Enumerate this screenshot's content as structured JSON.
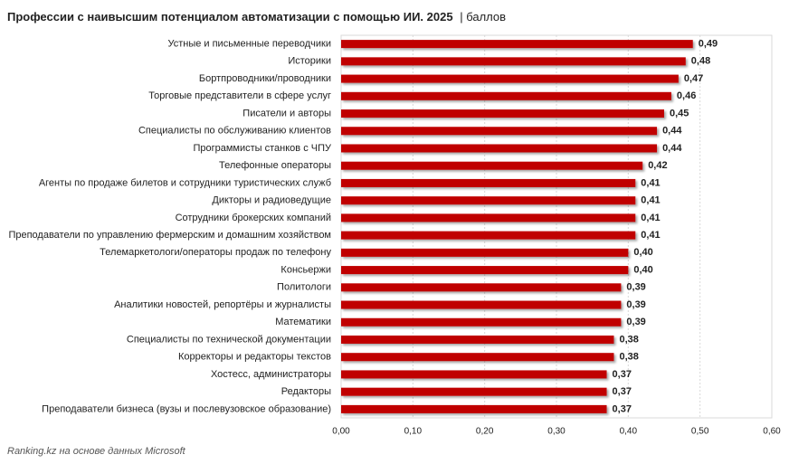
{
  "chart_data": {
    "type": "hbar",
    "title": "Профессии с наивысшим потенциалом автоматизации с помощью ИИ. 2025",
    "subtitle": "| баллов",
    "source": "Ranking.kz на основе данных Microsoft",
    "color": "#c00000",
    "grid": true,
    "categories": [
      "Устные и письменные переводчики",
      "Историки",
      "Бортпроводники/проводники",
      "Торговые представители в сфере услуг",
      "Писатели и авторы",
      "Специалисты по обслуживанию клиентов",
      "Программисты станков с ЧПУ",
      "Телефонные операторы",
      "Агенты по продаже билетов и сотрудники туристических служб",
      "Дикторы и радиоведущие",
      "Сотрудники брокерских компаний",
      "Преподаватели по управлению фермерским и домашним хозяйством",
      "Телемаркетологи/операторы продаж по телефону",
      "Консьержи",
      "Политологи",
      "Аналитики новостей, репортёры и журналисты",
      "Математики",
      "Специалисты по технической документации",
      "Корректоры и редакторы текстов",
      "Хостесс, администраторы",
      "Редакторы",
      "Преподаватели бизнеса (вузы и послевузовское образование)"
    ],
    "values": [
      0.49,
      0.48,
      0.47,
      0.46,
      0.45,
      0.44,
      0.44,
      0.42,
      0.41,
      0.41,
      0.41,
      0.41,
      0.4,
      0.4,
      0.39,
      0.39,
      0.39,
      0.38,
      0.38,
      0.37,
      0.37,
      0.37
    ],
    "value_labels": [
      "0,49",
      "0,48",
      "0,47",
      "0,46",
      "0,45",
      "0,44",
      "0,44",
      "0,42",
      "0,41",
      "0,41",
      "0,41",
      "0,41",
      "0,40",
      "0,40",
      "0,39",
      "0,39",
      "0,39",
      "0,38",
      "0,38",
      "0,37",
      "0,37",
      "0,37"
    ],
    "xlim": [
      0,
      0.6
    ],
    "xticks": [
      {
        "value": 0,
        "label": "0,00"
      },
      {
        "value": 0.1,
        "label": "0,10"
      },
      {
        "value": 0.2,
        "label": "0,20"
      },
      {
        "value": 0.3,
        "label": "0,30"
      },
      {
        "value": 0.4,
        "label": "0,40"
      },
      {
        "value": 0.5,
        "label": "0,50"
      },
      {
        "value": 0.6,
        "label": "0,60"
      }
    ]
  }
}
